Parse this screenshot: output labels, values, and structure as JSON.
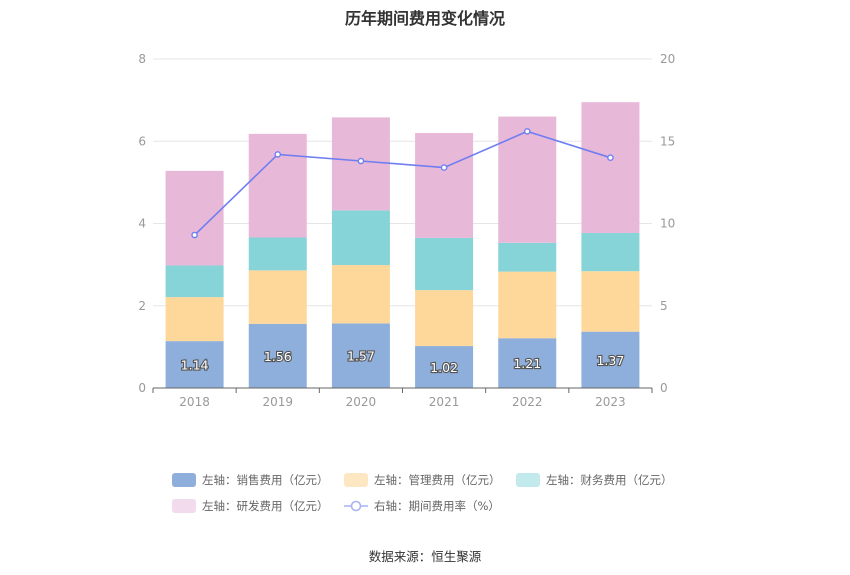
{
  "title": "历年期间费用变化情况",
  "source_label": "数据来源：恒生聚源",
  "chart_data": {
    "type": "bar",
    "stacked": true,
    "categories": [
      "2018",
      "2019",
      "2020",
      "2021",
      "2022",
      "2023"
    ],
    "y_left": {
      "ylim": [
        0,
        8
      ],
      "ticks": [
        "0",
        "2",
        "4",
        "6",
        "8"
      ]
    },
    "y_right": {
      "ylim": [
        0,
        20
      ],
      "ticks": [
        "0",
        "5",
        "10",
        "15",
        "20"
      ]
    },
    "grid": true,
    "legend_position": "bottom",
    "series": [
      {
        "name": "左轴：销售费用（亿元）",
        "axis": "left",
        "type": "bar",
        "color": "#8eafdb",
        "values": [
          1.14,
          1.56,
          1.57,
          1.02,
          1.21,
          1.37
        ],
        "labels": [
          "1.14",
          "1.56",
          "1.57",
          "1.02",
          "1.21",
          "1.37"
        ]
      },
      {
        "name": "左轴：管理费用（亿元）",
        "axis": "left",
        "type": "bar",
        "color": "#fdd89a",
        "values": [
          1.07,
          1.3,
          1.42,
          1.36,
          1.62,
          1.47
        ]
      },
      {
        "name": "左轴：财务费用（亿元）",
        "axis": "left",
        "type": "bar",
        "color": "#86d4d8",
        "values": [
          0.77,
          0.8,
          1.33,
          1.27,
          0.7,
          0.93
        ]
      },
      {
        "name": "左轴：研发费用（亿元）",
        "axis": "left",
        "type": "bar",
        "color": "#e8b8d8",
        "values": [
          2.3,
          2.52,
          2.26,
          2.55,
          3.07,
          3.18
        ]
      },
      {
        "name": "右轴：期间费用率（%）",
        "axis": "right",
        "type": "line",
        "color": "#6f7ef0",
        "values": [
          9.3,
          14.2,
          13.8,
          13.4,
          15.6,
          14.0
        ]
      }
    ]
  },
  "legend_colors": [
    "#8eafdb",
    "#fde6c2",
    "#c2e9ec",
    "#f2dbec",
    "#a9b2f5"
  ]
}
